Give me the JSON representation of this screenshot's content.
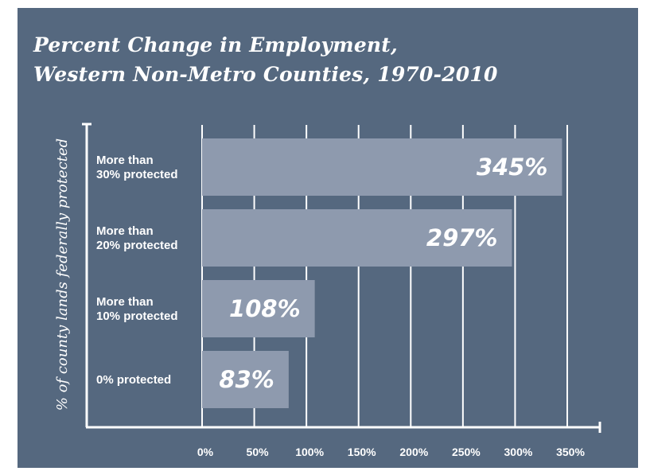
{
  "chart_data": {
    "type": "bar",
    "orientation": "horizontal",
    "title_lines": [
      "Percent Change in Employment,",
      "Western Non-Metro Counties, 1970-2010"
    ],
    "ylabel": "% of county lands federally protected",
    "xlabel": "",
    "categories": [
      [
        "More than",
        "30% protected"
      ],
      [
        "More than",
        "20% protected"
      ],
      [
        "More than",
        "10% protected"
      ],
      [
        "0% protected"
      ]
    ],
    "values": [
      345,
      297,
      108,
      83
    ],
    "value_labels": [
      "345%",
      "297%",
      "108%",
      "83%"
    ],
    "xlim": [
      0,
      350
    ],
    "xticks": [
      0,
      50,
      100,
      150,
      200,
      250,
      300,
      350
    ],
    "xtick_labels": [
      "0%",
      "50%",
      "100%",
      "150%",
      "200%",
      "250%",
      "300%",
      "350%"
    ],
    "grid": "vertical",
    "colors": {
      "background": "#55687f",
      "bar": "#8e9aae",
      "gridline": "#ffffff",
      "text": "#ffffff"
    }
  }
}
